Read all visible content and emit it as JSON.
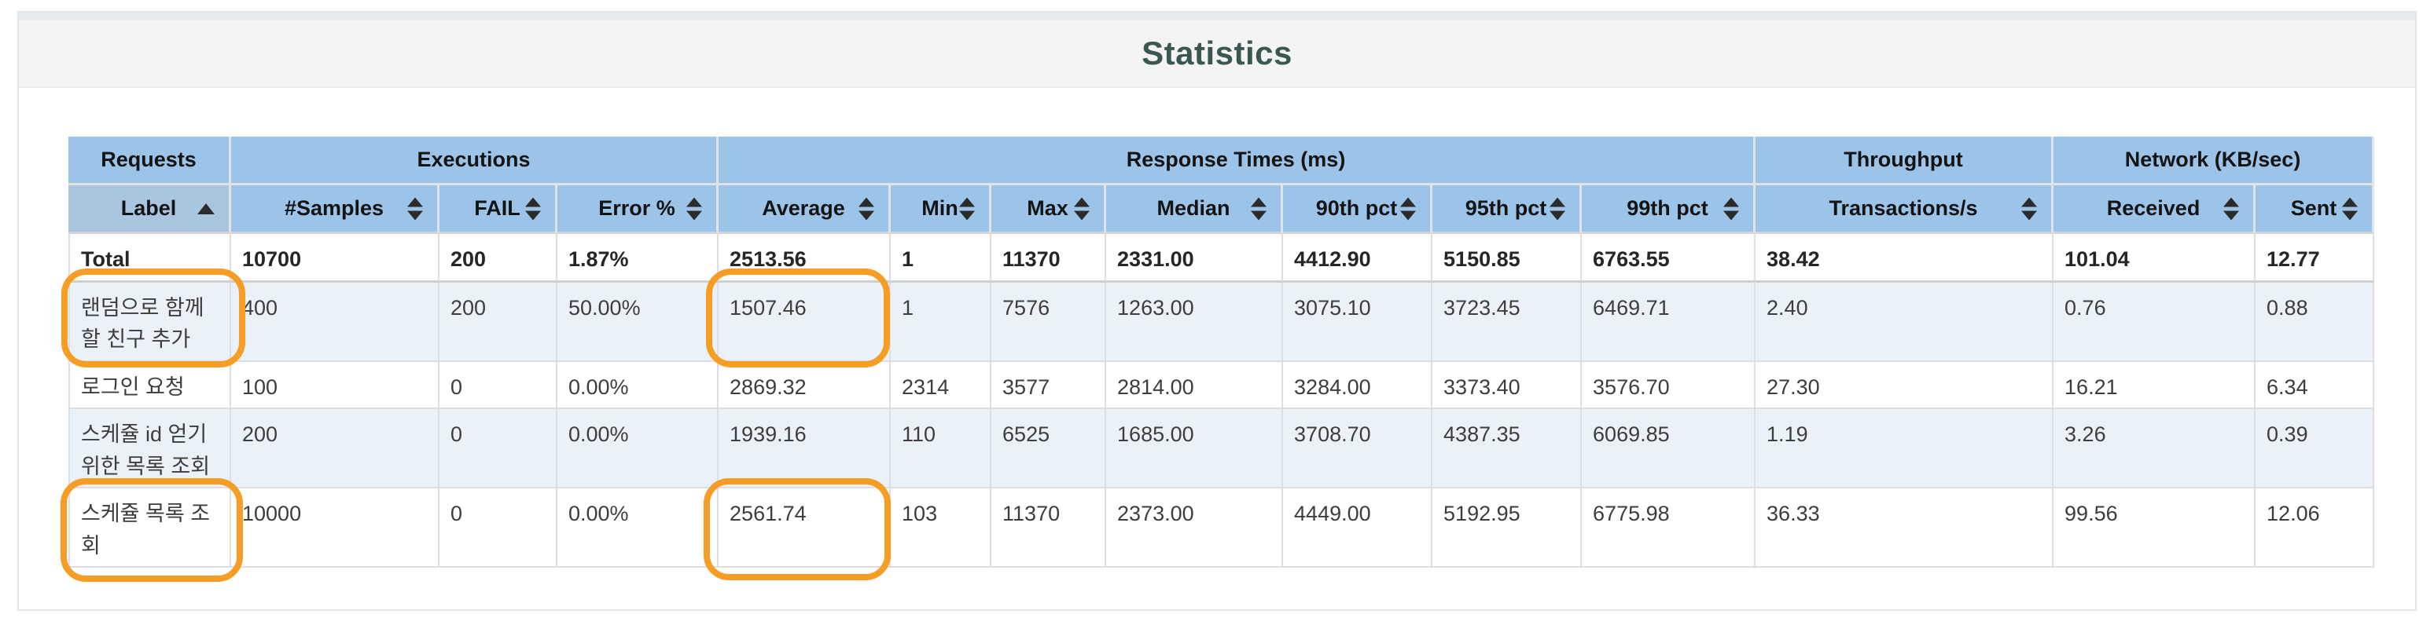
{
  "title": "Statistics",
  "colors": {
    "title": "#3a5751",
    "header_blue": "#9cc3e8",
    "sorted_header_blue": "#a9c5e0",
    "stripe_row": "#eaf1f8",
    "highlight": "#f59d25"
  },
  "table": {
    "groups": [
      {
        "label": "Requests",
        "span": 1
      },
      {
        "label": "Executions",
        "span": 3
      },
      {
        "label": "Response Times (ms)",
        "span": 7
      },
      {
        "label": "Throughput",
        "span": 1
      },
      {
        "label": "Network (KB/sec)",
        "span": 2
      }
    ],
    "columns": [
      {
        "label": "Label",
        "sort": "asc",
        "sort_icon": "sort-asc-icon"
      },
      {
        "label": "#Samples",
        "sort": "both",
        "sort_icon": "sort-both-icon"
      },
      {
        "label": "FAIL",
        "sort": "both",
        "sort_icon": "sort-both-icon"
      },
      {
        "label": "Error %",
        "sort": "both",
        "sort_icon": "sort-both-icon"
      },
      {
        "label": "Average",
        "sort": "both",
        "sort_icon": "sort-both-icon"
      },
      {
        "label": "Min",
        "sort": "both",
        "sort_icon": "sort-both-icon"
      },
      {
        "label": "Max",
        "sort": "both",
        "sort_icon": "sort-both-icon"
      },
      {
        "label": "Median",
        "sort": "both",
        "sort_icon": "sort-both-icon"
      },
      {
        "label": "90th pct",
        "sort": "both",
        "sort_icon": "sort-both-icon"
      },
      {
        "label": "95th pct",
        "sort": "both",
        "sort_icon": "sort-both-icon"
      },
      {
        "label": "99th pct",
        "sort": "both",
        "sort_icon": "sort-both-icon"
      },
      {
        "label": "Transactions/s",
        "sort": "both",
        "sort_icon": "sort-both-icon"
      },
      {
        "label": "Received",
        "sort": "both",
        "sort_icon": "sort-both-icon"
      },
      {
        "label": "Sent",
        "sort": "both",
        "sort_icon": "sort-both-icon"
      }
    ],
    "rows": [
      {
        "label": "Total",
        "total": true,
        "values": [
          "10700",
          "200",
          "1.87%",
          "2513.56",
          "1",
          "11370",
          "2331.00",
          "4412.90",
          "5150.85",
          "6763.55",
          "38.42",
          "101.04",
          "12.77"
        ]
      },
      {
        "label": "랜덤으로 함께할 친구 추가",
        "total": false,
        "values": [
          "400",
          "200",
          "50.00%",
          "1507.46",
          "1",
          "7576",
          "1263.00",
          "3075.10",
          "3723.45",
          "6469.71",
          "2.40",
          "0.76",
          "0.88"
        ]
      },
      {
        "label": "로그인 요청",
        "total": false,
        "values": [
          "100",
          "0",
          "0.00%",
          "2869.32",
          "2314",
          "3577",
          "2814.00",
          "3284.00",
          "3373.40",
          "3576.70",
          "27.30",
          "16.21",
          "6.34"
        ]
      },
      {
        "label": "스케쥴 id 얻기위한 목록 조회",
        "total": false,
        "values": [
          "200",
          "0",
          "0.00%",
          "1939.16",
          "110",
          "6525",
          "1685.00",
          "3708.70",
          "4387.35",
          "6069.85",
          "1.19",
          "3.26",
          "0.39"
        ]
      },
      {
        "label": "스케쥴 목록 조회",
        "total": false,
        "values": [
          "10000",
          "0",
          "0.00%",
          "2561.74",
          "103",
          "11370",
          "2373.00",
          "4449.00",
          "5192.95",
          "6775.98",
          "36.33",
          "99.56",
          "12.06"
        ]
      }
    ]
  },
  "annotations": {
    "shape": "rounded-rect-outline",
    "color": "#f59d25",
    "items": [
      {
        "target_row": "랜덤으로 함께할 친구 추가",
        "target_column": "Label"
      },
      {
        "target_row": "랜덤으로 함께할 친구 추가",
        "target_column": "Average"
      },
      {
        "target_row": "스케쥴 목록 조회",
        "target_column": "Label"
      },
      {
        "target_row": "스케쥴 목록 조회",
        "target_column": "Average"
      }
    ]
  }
}
